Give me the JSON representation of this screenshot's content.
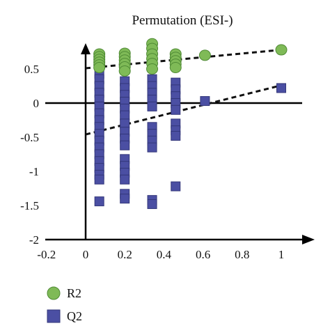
{
  "chart_data": {
    "type": "scatter",
    "title": "Permutation (ESI-)",
    "xlim": [
      -0.2,
      1.1
    ],
    "ylim": [
      -2,
      0.95
    ],
    "x_ticks": [
      -0.2,
      0,
      0.2,
      0.4,
      0.6,
      0.8,
      1
    ],
    "x_tick_labels": [
      "-0.2",
      "0",
      "0.2",
      "0.4",
      "0.6",
      "0.8",
      "1"
    ],
    "y_ticks": [
      0.5,
      0,
      -0.5,
      -1,
      -1.5,
      -2
    ],
    "y_tick_labels": [
      "0.5",
      "0",
      "-0.5",
      "-1",
      "-1.5",
      "-2"
    ],
    "grid": false,
    "legend_position": "bottom-left",
    "series": [
      {
        "name": "R2",
        "marker": "circle",
        "color": "#7fba57",
        "edge_color": "#4f8a35",
        "points": [
          {
            "x": 0.07,
            "y": 0.72
          },
          {
            "x": 0.07,
            "y": 0.68
          },
          {
            "x": 0.07,
            "y": 0.64
          },
          {
            "x": 0.07,
            "y": 0.6
          },
          {
            "x": 0.07,
            "y": 0.56
          },
          {
            "x": 0.07,
            "y": 0.52
          },
          {
            "x": 0.2,
            "y": 0.73
          },
          {
            "x": 0.2,
            "y": 0.68
          },
          {
            "x": 0.2,
            "y": 0.63
          },
          {
            "x": 0.2,
            "y": 0.58
          },
          {
            "x": 0.2,
            "y": 0.53
          },
          {
            "x": 0.2,
            "y": 0.47
          },
          {
            "x": 0.34,
            "y": 0.87
          },
          {
            "x": 0.34,
            "y": 0.8
          },
          {
            "x": 0.34,
            "y": 0.72
          },
          {
            "x": 0.34,
            "y": 0.65
          },
          {
            "x": 0.34,
            "y": 0.58
          },
          {
            "x": 0.34,
            "y": 0.5
          },
          {
            "x": 0.46,
            "y": 0.72
          },
          {
            "x": 0.46,
            "y": 0.67
          },
          {
            "x": 0.46,
            "y": 0.62
          },
          {
            "x": 0.46,
            "y": 0.57
          },
          {
            "x": 0.46,
            "y": 0.52
          },
          {
            "x": 0.61,
            "y": 0.7
          },
          {
            "x": 1.0,
            "y": 0.78
          }
        ]
      },
      {
        "name": "Q2",
        "marker": "square",
        "color": "#4b4fa3",
        "edge_color": "#33377a",
        "points": [
          {
            "x": 0.07,
            "y": 0.43
          },
          {
            "x": 0.07,
            "y": 0.35
          },
          {
            "x": 0.07,
            "y": 0.25
          },
          {
            "x": 0.07,
            "y": 0.15
          },
          {
            "x": 0.07,
            "y": 0.05
          },
          {
            "x": 0.07,
            "y": -0.05
          },
          {
            "x": 0.07,
            "y": -0.15
          },
          {
            "x": 0.07,
            "y": -0.25
          },
          {
            "x": 0.07,
            "y": -0.35
          },
          {
            "x": 0.07,
            "y": -0.45
          },
          {
            "x": 0.07,
            "y": -0.55
          },
          {
            "x": 0.07,
            "y": -0.65
          },
          {
            "x": 0.07,
            "y": -0.75
          },
          {
            "x": 0.07,
            "y": -0.85
          },
          {
            "x": 0.07,
            "y": -0.95
          },
          {
            "x": 0.07,
            "y": -1.05
          },
          {
            "x": 0.07,
            "y": -1.12
          },
          {
            "x": 0.07,
            "y": -1.44
          },
          {
            "x": 0.2,
            "y": 0.32
          },
          {
            "x": 0.2,
            "y": 0.22
          },
          {
            "x": 0.2,
            "y": 0.12
          },
          {
            "x": 0.2,
            "y": 0.02
          },
          {
            "x": 0.2,
            "y": -0.08
          },
          {
            "x": 0.2,
            "y": -0.18
          },
          {
            "x": 0.2,
            "y": -0.3
          },
          {
            "x": 0.2,
            "y": -0.42
          },
          {
            "x": 0.2,
            "y": -0.52
          },
          {
            "x": 0.2,
            "y": -0.62
          },
          {
            "x": 0.2,
            "y": -0.82
          },
          {
            "x": 0.2,
            "y": -0.92
          },
          {
            "x": 0.2,
            "y": -1.02
          },
          {
            "x": 0.2,
            "y": -1.12
          },
          {
            "x": 0.2,
            "y": -1.33
          },
          {
            "x": 0.2,
            "y": -1.4
          },
          {
            "x": 0.34,
            "y": 0.35
          },
          {
            "x": 0.34,
            "y": 0.25
          },
          {
            "x": 0.34,
            "y": 0.15
          },
          {
            "x": 0.34,
            "y": 0.05
          },
          {
            "x": 0.34,
            "y": -0.05
          },
          {
            "x": 0.34,
            "y": -0.35
          },
          {
            "x": 0.34,
            "y": -0.45
          },
          {
            "x": 0.34,
            "y": -0.55
          },
          {
            "x": 0.34,
            "y": -0.65
          },
          {
            "x": 0.34,
            "y": -1.42
          },
          {
            "x": 0.34,
            "y": -1.48
          },
          {
            "x": 0.46,
            "y": 0.3
          },
          {
            "x": 0.46,
            "y": 0.2
          },
          {
            "x": 0.46,
            "y": 0.1
          },
          {
            "x": 0.46,
            "y": 0.0
          },
          {
            "x": 0.46,
            "y": -0.1
          },
          {
            "x": 0.46,
            "y": -0.3
          },
          {
            "x": 0.46,
            "y": -0.4
          },
          {
            "x": 0.46,
            "y": -0.48
          },
          {
            "x": 0.46,
            "y": -1.22
          },
          {
            "x": 0.61,
            "y": 0.03
          },
          {
            "x": 1.0,
            "y": 0.22
          }
        ]
      }
    ],
    "trend_lines": [
      {
        "series": "R2",
        "x": [
          0,
          1.0
        ],
        "y": [
          0.51,
          0.78
        ]
      },
      {
        "series": "Q2",
        "x": [
          0,
          1.0
        ],
        "y": [
          -0.46,
          0.26
        ]
      }
    ]
  }
}
